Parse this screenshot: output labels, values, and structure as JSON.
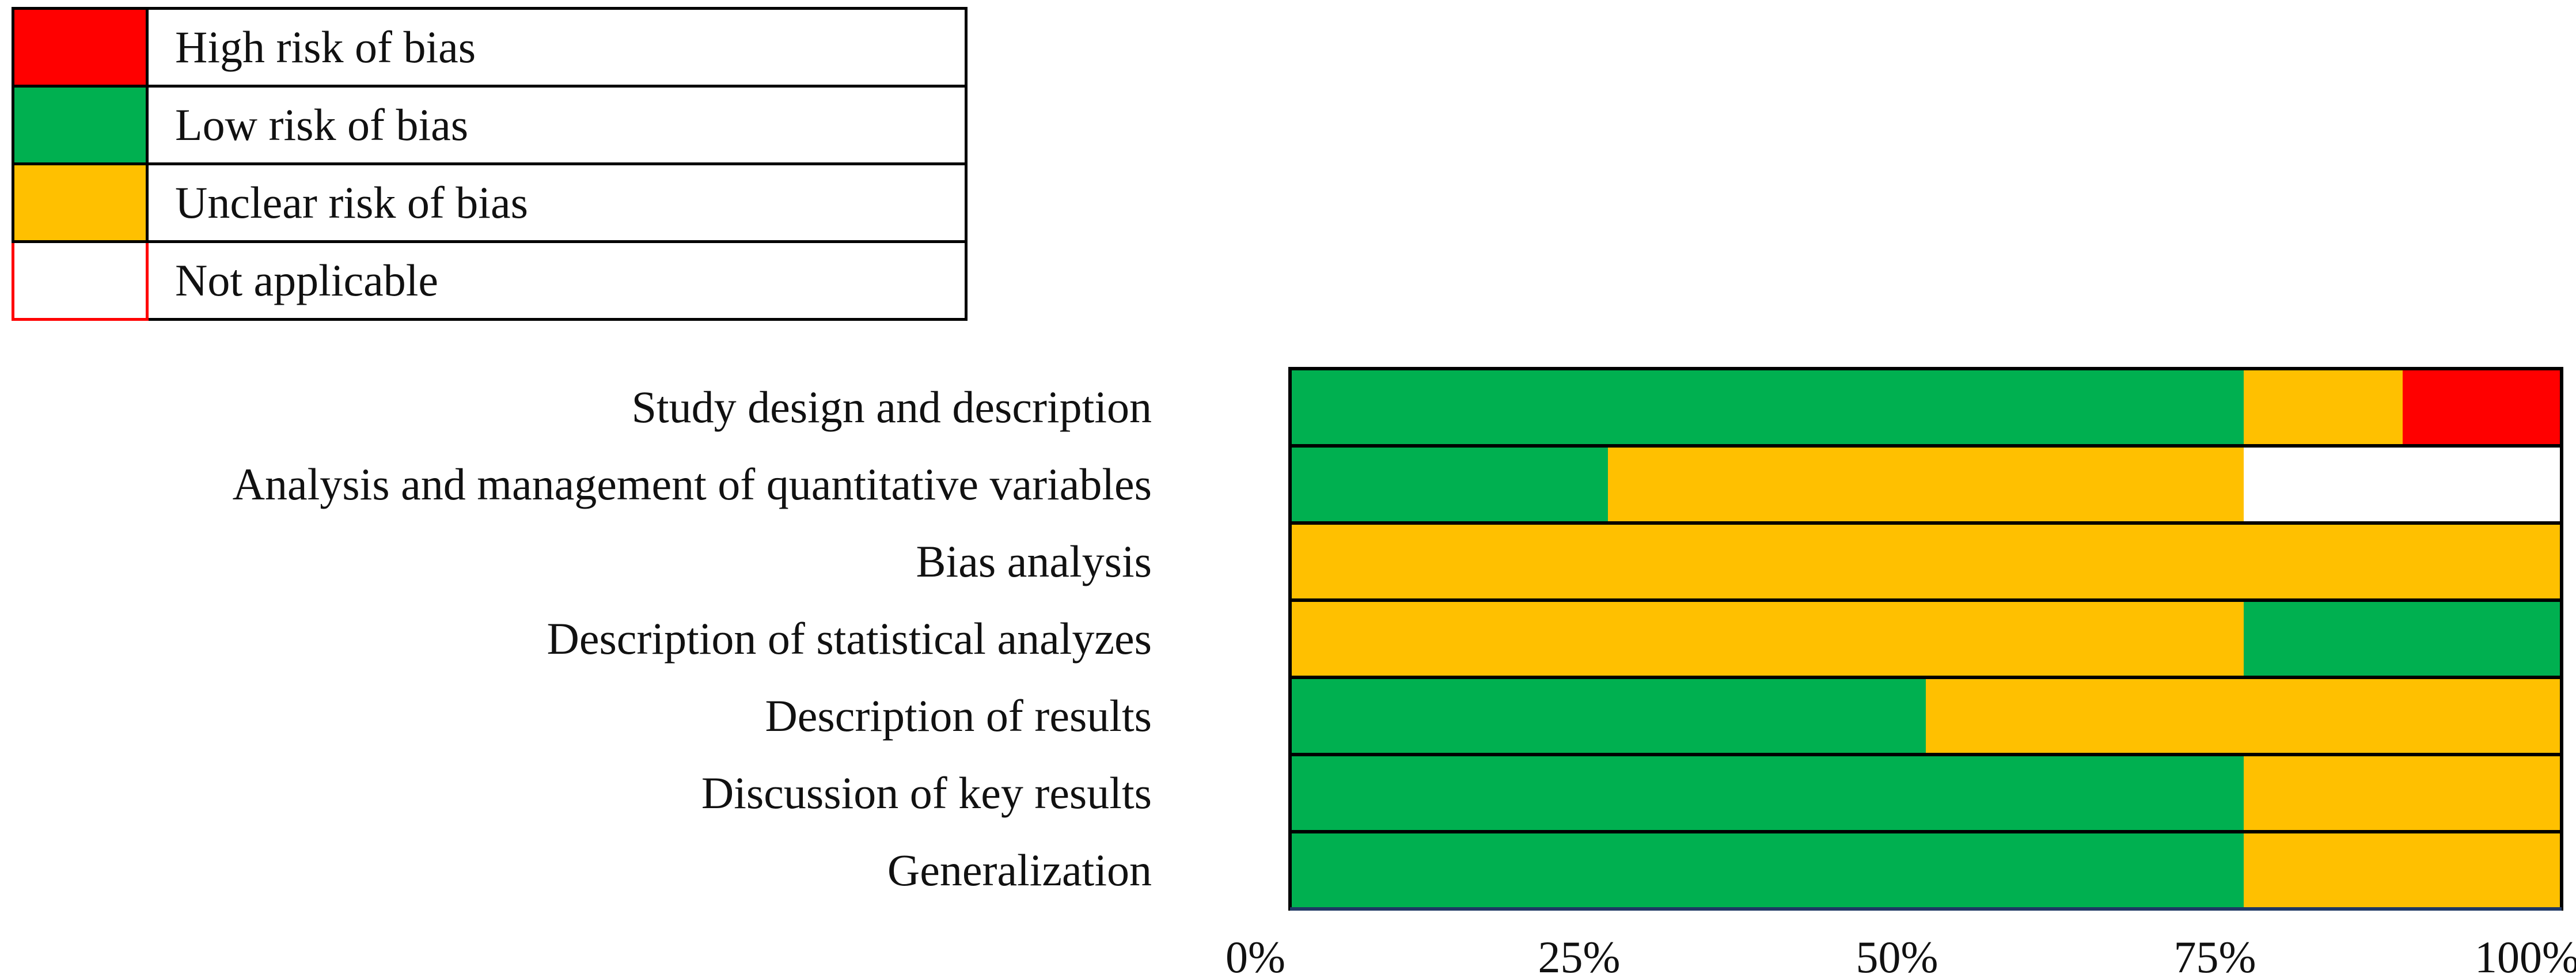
{
  "legend": [
    {
      "label": "High risk of bias",
      "color": "#ff0000",
      "key": "high"
    },
    {
      "label": "Low risk of bias",
      "color": "#00b050",
      "key": "low"
    },
    {
      "label": "Unclear risk of bias",
      "color": "#ffc000",
      "key": "unclear"
    },
    {
      "label": "Not applicable",
      "color": "#ffffff",
      "key": "na"
    }
  ],
  "chart_data": {
    "type": "bar",
    "orientation": "horizontal",
    "stacked": true,
    "categories": [
      "Study design and description",
      "Analysis and management of quantitative variables",
      "Bias analysis",
      "Description of statistical analyzes",
      "Description of results",
      "Discussion of key results",
      "Generalization"
    ],
    "rows": [
      [
        {
          "key": "low",
          "value": 75
        },
        {
          "key": "unclear",
          "value": 12.5
        },
        {
          "key": "high",
          "value": 12.5
        }
      ],
      [
        {
          "key": "low",
          "value": 25
        },
        {
          "key": "unclear",
          "value": 50
        },
        {
          "key": "na",
          "value": 25
        }
      ],
      [
        {
          "key": "unclear",
          "value": 100
        }
      ],
      [
        {
          "key": "unclear",
          "value": 75
        },
        {
          "key": "low",
          "value": 25
        }
      ],
      [
        {
          "key": "low",
          "value": 50
        },
        {
          "key": "unclear",
          "value": 50
        }
      ],
      [
        {
          "key": "low",
          "value": 75
        },
        {
          "key": "unclear",
          "value": 25
        }
      ],
      [
        {
          "key": "low",
          "value": 75
        },
        {
          "key": "unclear",
          "value": 25
        }
      ]
    ],
    "xticks": [
      "0%",
      "25%",
      "50%",
      "75%",
      "100%"
    ],
    "xlim": [
      0,
      100
    ],
    "colors": {
      "high": "#ff0000",
      "low": "#00b050",
      "unclear": "#ffc000",
      "na": "#ffffff"
    }
  }
}
